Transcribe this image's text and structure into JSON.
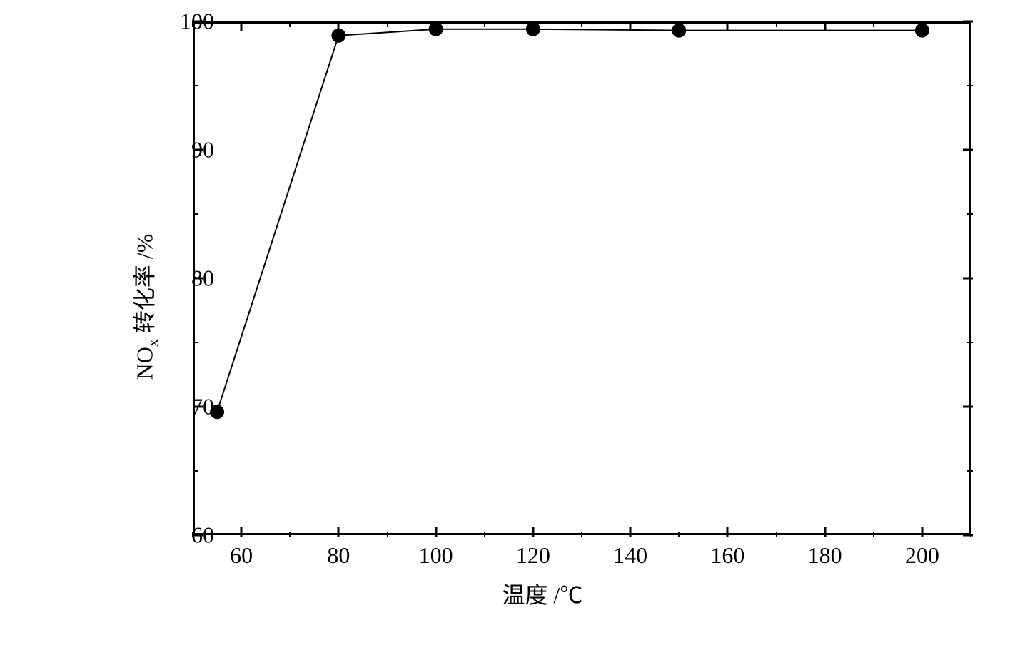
{
  "chart": {
    "type": "line",
    "x_values": [
      55,
      80,
      100,
      120,
      150,
      200
    ],
    "y_values": [
      69.6,
      98.9,
      99.4,
      99.4,
      99.3,
      99.3
    ],
    "line_color": "#000000",
    "line_width": 2,
    "marker_color": "#000000",
    "marker_size": 10,
    "marker_style": "circle",
    "background_color": "#ffffff",
    "xlim": [
      50,
      210
    ],
    "ylim": [
      60,
      100
    ],
    "x_major_ticks": [
      60,
      80,
      100,
      120,
      140,
      160,
      180,
      200
    ],
    "x_minor_ticks": [
      50,
      70,
      90,
      110,
      130,
      150,
      170,
      190,
      210
    ],
    "y_major_ticks": [
      60,
      70,
      80,
      90,
      100
    ],
    "y_minor_ticks": [
      65,
      75,
      85,
      95
    ],
    "x_tick_labels": [
      "60",
      "80",
      "100",
      "120",
      "140",
      "160",
      "180",
      "200"
    ],
    "y_tick_labels": [
      "60",
      "70",
      "80",
      "90",
      "100"
    ],
    "xlabel": "温度  /℃",
    "ylabel_prefix": "NO",
    "ylabel_sub": "x",
    "ylabel_suffix": " 转化率   /%",
    "label_fontsize": 32,
    "tick_fontsize": 32,
    "border_width": 3,
    "grid": false
  }
}
